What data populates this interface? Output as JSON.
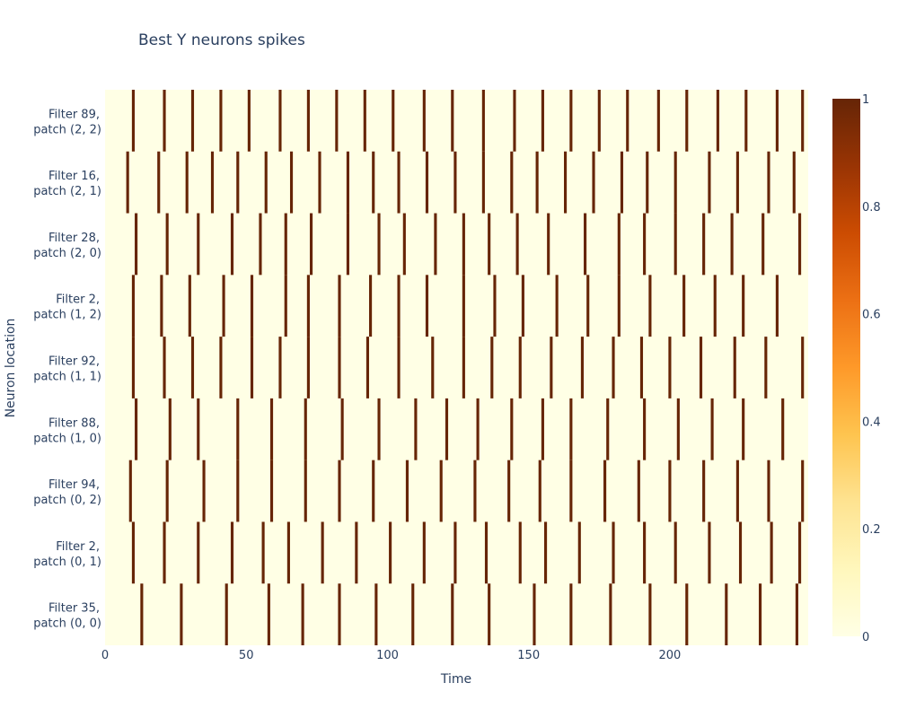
{
  "chart_data": {
    "type": "heatmap",
    "title": "Best Y neurons spikes",
    "xlabel": "Time",
    "ylabel": "Neuron location",
    "xlim": [
      0,
      249
    ],
    "x_ticks": [
      0,
      50,
      100,
      150,
      200
    ],
    "colorscale": [
      "#ffffe5",
      "#fff7bc",
      "#fee391",
      "#fec44f",
      "#fe9929",
      "#ec7014",
      "#cc4c02",
      "#993404",
      "#662506"
    ],
    "zlim": [
      0,
      1
    ],
    "colorbar_ticks": [
      0,
      0.2,
      0.4,
      0.6,
      0.8,
      1
    ],
    "rows": [
      {
        "label_line1": "Filter 35,",
        "label_line2": "patch (0, 0)",
        "spikes": [
          13,
          27,
          43,
          58,
          70,
          83,
          96,
          109,
          123,
          136,
          152,
          165,
          179,
          193,
          206,
          220,
          232,
          245
        ]
      },
      {
        "label_line1": "Filter 2,",
        "label_line2": "patch (0, 1)",
        "spikes": [
          10,
          21,
          33,
          45,
          56,
          65,
          77,
          89,
          101,
          113,
          124,
          135,
          147,
          156,
          168,
          180,
          191,
          202,
          214,
          225,
          236,
          246
        ]
      },
      {
        "label_line1": "Filter 94,",
        "label_line2": "patch (0, 2)",
        "spikes": [
          9,
          22,
          35,
          47,
          59,
          71,
          83,
          95,
          107,
          119,
          131,
          143,
          154,
          165,
          177,
          189,
          200,
          212,
          224,
          235,
          247
        ]
      },
      {
        "label_line1": "Filter 88,",
        "label_line2": "patch (1, 0)",
        "spikes": [
          11,
          23,
          33,
          47,
          59,
          71,
          84,
          97,
          110,
          121,
          132,
          144,
          155,
          165,
          178,
          191,
          203,
          215,
          226,
          240
        ]
      },
      {
        "label_line1": "Filter 92,",
        "label_line2": "patch (1, 1)",
        "spikes": [
          10,
          21,
          31,
          41,
          52,
          62,
          72,
          83,
          93,
          104,
          116,
          127,
          137,
          147,
          158,
          169,
          180,
          190,
          200,
          211,
          223,
          234,
          247
        ]
      },
      {
        "label_line1": "Filter 2,",
        "label_line2": "patch (1, 2)",
        "spikes": [
          10,
          20,
          30,
          42,
          52,
          64,
          72,
          83,
          94,
          104,
          114,
          127,
          138,
          148,
          160,
          171,
          182,
          193,
          205,
          216,
          226,
          238
        ]
      },
      {
        "label_line1": "Filter 28,",
        "label_line2": "patch (2, 0)",
        "spikes": [
          11,
          22,
          33,
          45,
          55,
          64,
          73,
          86,
          97,
          106,
          117,
          127,
          136,
          146,
          157,
          170,
          182,
          191,
          202,
          212,
          222,
          233,
          246
        ]
      },
      {
        "label_line1": "Filter 16,",
        "label_line2": "patch (2, 1)",
        "spikes": [
          8,
          19,
          29,
          38,
          47,
          57,
          66,
          76,
          86,
          95,
          104,
          114,
          124,
          134,
          144,
          153,
          163,
          173,
          183,
          192,
          202,
          214,
          224,
          235,
          244
        ]
      },
      {
        "label_line1": "Filter 89,",
        "label_line2": "patch (2, 2)",
        "spikes": [
          10,
          21,
          31,
          41,
          51,
          62,
          72,
          82,
          92,
          102,
          113,
          123,
          134,
          145,
          155,
          165,
          175,
          185,
          196,
          206,
          217,
          227,
          238,
          247
        ]
      }
    ]
  }
}
